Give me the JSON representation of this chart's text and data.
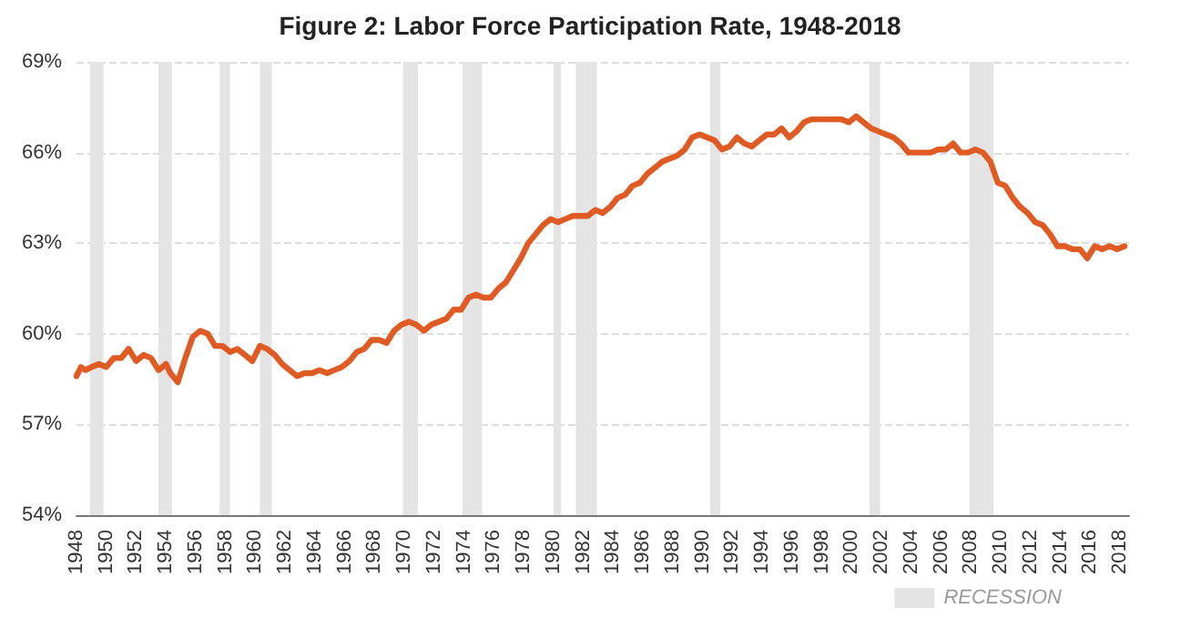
{
  "chart_data": {
    "type": "line",
    "title": "Figure 2: Labor Force Participation Rate, 1948-2018",
    "x": [
      1948.0,
      1948.3,
      1948.6,
      1949.0,
      1949.5,
      1950.0,
      1950.5,
      1951.0,
      1951.5,
      1952.0,
      1952.5,
      1953.0,
      1953.5,
      1954.0,
      1954.3,
      1954.8,
      1955.3,
      1955.8,
      1956.3,
      1956.8,
      1957.3,
      1957.8,
      1958.3,
      1958.8,
      1959.3,
      1959.8,
      1960.3,
      1960.8,
      1961.3,
      1961.8,
      1962.3,
      1962.8,
      1963.3,
      1963.8,
      1964.3,
      1964.8,
      1965.3,
      1965.8,
      1966.3,
      1966.8,
      1967.3,
      1967.8,
      1968.3,
      1968.8,
      1969.3,
      1969.8,
      1970.3,
      1970.8,
      1971.3,
      1971.8,
      1972.3,
      1972.8,
      1973.3,
      1973.8,
      1974.3,
      1974.8,
      1975.3,
      1975.8,
      1976.3,
      1976.8,
      1977.3,
      1977.8,
      1978.3,
      1978.8,
      1979.3,
      1979.8,
      1980.3,
      1980.8,
      1981.3,
      1981.8,
      1982.3,
      1982.8,
      1983.3,
      1983.8,
      1984.3,
      1984.8,
      1985.3,
      1985.8,
      1986.3,
      1986.8,
      1987.3,
      1987.8,
      1988.3,
      1988.8,
      1989.3,
      1989.8,
      1990.3,
      1990.8,
      1991.3,
      1991.8,
      1992.3,
      1992.8,
      1993.3,
      1993.8,
      1994.3,
      1994.8,
      1995.3,
      1995.8,
      1996.3,
      1996.8,
      1997.3,
      1997.8,
      1998.3,
      1998.8,
      1999.3,
      1999.8,
      2000.3,
      2000.8,
      2001.3,
      2001.8,
      2002.3,
      2002.8,
      2003.3,
      2003.8,
      2004.3,
      2004.8,
      2005.3,
      2005.8,
      2006.3,
      2006.8,
      2007.3,
      2007.8,
      2008.3,
      2008.8,
      2009.3,
      2009.8,
      2010.3,
      2010.8,
      2011.3,
      2011.8,
      2012.3,
      2012.8,
      2013.3,
      2013.8,
      2014.3,
      2014.8,
      2015.3,
      2015.8,
      2016.3,
      2016.8,
      2017.3,
      2017.8,
      2018.3
    ],
    "series": [
      {
        "color": "#e05a24",
        "values": [
          58.6,
          58.9,
          58.8,
          58.9,
          59.0,
          58.9,
          59.2,
          59.2,
          59.5,
          59.1,
          59.3,
          59.2,
          58.8,
          59.0,
          58.7,
          58.4,
          59.2,
          59.9,
          60.1,
          60.0,
          59.6,
          59.6,
          59.4,
          59.5,
          59.3,
          59.1,
          59.6,
          59.5,
          59.3,
          59.0,
          58.8,
          58.6,
          58.7,
          58.7,
          58.8,
          58.7,
          58.8,
          58.9,
          59.1,
          59.4,
          59.5,
          59.8,
          59.8,
          59.7,
          60.1,
          60.3,
          60.4,
          60.3,
          60.1,
          60.3,
          60.4,
          60.5,
          60.8,
          60.8,
          61.2,
          61.3,
          61.2,
          61.2,
          61.5,
          61.7,
          62.1,
          62.5,
          63.0,
          63.3,
          63.6,
          63.8,
          63.7,
          63.8,
          63.9,
          63.9,
          63.9,
          64.1,
          64.0,
          64.2,
          64.5,
          64.6,
          64.9,
          65.0,
          65.3,
          65.5,
          65.7,
          65.8,
          65.9,
          66.1,
          66.5,
          66.6,
          66.5,
          66.4,
          66.1,
          66.2,
          66.5,
          66.3,
          66.2,
          66.4,
          66.6,
          66.6,
          66.8,
          66.5,
          66.7,
          67.0,
          67.1,
          67.1,
          67.1,
          67.1,
          67.1,
          67.0,
          67.2,
          67.0,
          66.8,
          66.7,
          66.6,
          66.5,
          66.3,
          66.0,
          66.0,
          66.0,
          66.0,
          66.1,
          66.1,
          66.3,
          66.0,
          66.0,
          66.1,
          66.0,
          65.7,
          65.0,
          64.9,
          64.5,
          64.2,
          64.0,
          63.7,
          63.6,
          63.3,
          62.9,
          62.9,
          62.8,
          62.8,
          62.5,
          62.9,
          62.8,
          62.9,
          62.8,
          62.9
        ]
      }
    ],
    "xlim": [
      1948,
      2018.6
    ],
    "xticks": [
      1948,
      1950,
      1952,
      1954,
      1956,
      1958,
      1960,
      1962,
      1964,
      1966,
      1968,
      1970,
      1972,
      1974,
      1976,
      1978,
      1980,
      1982,
      1984,
      1986,
      1988,
      1990,
      1992,
      1994,
      1996,
      1998,
      2000,
      2002,
      2004,
      2006,
      2008,
      2010,
      2012,
      2014,
      2016,
      2018
    ],
    "ylim": [
      54,
      69
    ],
    "yticks": [
      {
        "value": 54,
        "label": "54%"
      },
      {
        "value": 57,
        "label": "57%"
      },
      {
        "value": 60,
        "label": "60%"
      },
      {
        "value": 63,
        "label": "63%"
      },
      {
        "value": 66,
        "label": "66%"
      },
      {
        "value": 69,
        "label": "69%"
      }
    ],
    "bands": [
      {
        "axis": "x",
        "from": 1948.9,
        "to": 1949.8,
        "label": "RECESSION",
        "color": "#e4e4e4"
      },
      {
        "axis": "x",
        "from": 1953.5,
        "to": 1954.4,
        "color": "#e4e4e4"
      },
      {
        "axis": "x",
        "from": 1957.6,
        "to": 1958.3,
        "color": "#e4e4e4"
      },
      {
        "axis": "x",
        "from": 1960.3,
        "to": 1961.1,
        "color": "#e4e4e4"
      },
      {
        "axis": "x",
        "from": 1969.9,
        "to": 1970.9,
        "color": "#e4e4e4"
      },
      {
        "axis": "x",
        "from": 1973.9,
        "to": 1975.2,
        "color": "#e4e4e4"
      },
      {
        "axis": "x",
        "from": 1980.0,
        "to": 1980.5,
        "color": "#e4e4e4"
      },
      {
        "axis": "x",
        "from": 1981.5,
        "to": 1982.9,
        "color": "#e4e4e4"
      },
      {
        "axis": "x",
        "from": 1990.5,
        "to": 1991.2,
        "color": "#e4e4e4"
      },
      {
        "axis": "x",
        "from": 2001.2,
        "to": 2001.9,
        "color": "#e4e4e4"
      },
      {
        "axis": "x",
        "from": 2007.9,
        "to": 2009.5,
        "color": "#e4e4e4"
      }
    ],
    "grid": "y",
    "legend": "bottom right",
    "marker": "none",
    "line_style": "solid"
  }
}
